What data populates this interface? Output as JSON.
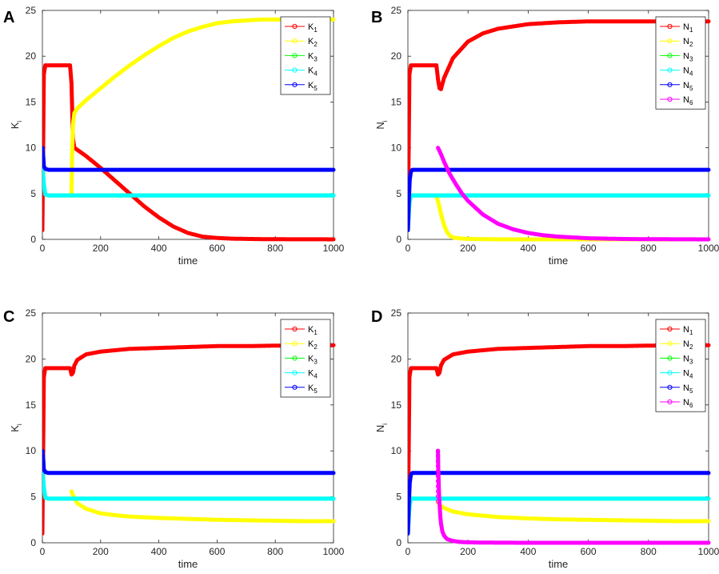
{
  "chart_data": [
    {
      "panel": "A",
      "type": "line",
      "xlabel": "time",
      "ylabel": "K",
      "ylabel_sub": "i",
      "xlim": [
        0,
        1000
      ],
      "ylim": [
        0,
        25
      ],
      "xticks": [
        "0",
        "200",
        "400",
        "600",
        "800",
        "1000"
      ],
      "yticks": [
        "0",
        "5",
        "10",
        "15",
        "20",
        "25"
      ],
      "legend_position": "top-right",
      "series": [
        {
          "name": "K",
          "sub": "1",
          "color": "#ff0000",
          "x": [
            0,
            5,
            10,
            15,
            20,
            40,
            60,
            80,
            95,
            100,
            105,
            110,
            150,
            200,
            250,
            300,
            350,
            400,
            450,
            500,
            550,
            600,
            650,
            700,
            750,
            800,
            850,
            900,
            950,
            1000
          ],
          "y": [
            1,
            18,
            19,
            19,
            19,
            19,
            19,
            19,
            19,
            17,
            11,
            10,
            9.1,
            7.8,
            6.4,
            5,
            3.6,
            2.4,
            1.4,
            0.7,
            0.3,
            0.15,
            0.08,
            0.05,
            0.03,
            0.02,
            0.01,
            0.01,
            0.01,
            0
          ]
        },
        {
          "name": "K",
          "sub": "2",
          "color": "#ffff00",
          "x": [
            100,
            102,
            105,
            110,
            120,
            150,
            200,
            250,
            300,
            350,
            400,
            450,
            500,
            550,
            600,
            650,
            700,
            750,
            800,
            850,
            900,
            950,
            1000
          ],
          "y": [
            5,
            9,
            12.5,
            13.8,
            14.3,
            15.2,
            16.5,
            17.8,
            19,
            20.1,
            21.1,
            22,
            22.7,
            23.2,
            23.6,
            23.8,
            23.9,
            24,
            24,
            24,
            24,
            24,
            24
          ]
        },
        {
          "name": "K",
          "sub": "3",
          "color": "#00ff00",
          "x": [
            0,
            5,
            10,
            20,
            50,
            100,
            200,
            400,
            600,
            800,
            1000
          ],
          "y": [
            8,
            6,
            4.9,
            4.8,
            4.8,
            4.8,
            4.8,
            4.8,
            4.8,
            4.8,
            4.8
          ]
        },
        {
          "name": "K",
          "sub": "4",
          "color": "#00ffff",
          "x": [
            0,
            5,
            10,
            20,
            50,
            100,
            200,
            400,
            600,
            800,
            1000
          ],
          "y": [
            8,
            6,
            4.9,
            4.8,
            4.8,
            4.8,
            4.8,
            4.8,
            4.8,
            4.8,
            4.8
          ]
        },
        {
          "name": "K",
          "sub": "5",
          "color": "#0000ff",
          "x": [
            0,
            2,
            5,
            10,
            20,
            50,
            100,
            200,
            400,
            600,
            800,
            1000
          ],
          "y": [
            10,
            9.5,
            8,
            7.7,
            7.6,
            7.6,
            7.6,
            7.6,
            7.6,
            7.6,
            7.6,
            7.6
          ]
        }
      ]
    },
    {
      "panel": "B",
      "type": "line",
      "xlabel": "time",
      "ylabel": "N",
      "ylabel_sub": "i",
      "xlim": [
        0,
        1000
      ],
      "ylim": [
        0,
        25
      ],
      "xticks": [
        "0",
        "200",
        "400",
        "600",
        "800",
        "1000"
      ],
      "yticks": [
        "0",
        "5",
        "10",
        "15",
        "20",
        "25"
      ],
      "legend_position": "top-right",
      "series": [
        {
          "name": "N",
          "sub": "1",
          "color": "#ff0000",
          "x": [
            0,
            5,
            10,
            15,
            20,
            40,
            60,
            80,
            95,
            100,
            105,
            110,
            120,
            150,
            200,
            250,
            300,
            400,
            500,
            600,
            700,
            800,
            900,
            1000
          ],
          "y": [
            1,
            18,
            19,
            19,
            19,
            19,
            19,
            19,
            19,
            17.5,
            16.5,
            16.4,
            17.6,
            19.8,
            21.6,
            22.5,
            23,
            23.5,
            23.7,
            23.8,
            23.8,
            23.8,
            23.8,
            23.8
          ]
        },
        {
          "name": "N",
          "sub": "2",
          "color": "#ffff00",
          "x": [
            95,
            100,
            110,
            120,
            130,
            140,
            150,
            175,
            200,
            300,
            400,
            600,
            800,
            1000
          ],
          "y": [
            4.7,
            4.2,
            2.8,
            1.6,
            0.8,
            0.4,
            0.2,
            0.1,
            0.05,
            0,
            0,
            0,
            0,
            0
          ]
        },
        {
          "name": "N",
          "sub": "3",
          "color": "#00ff00",
          "x": [
            0,
            5,
            10,
            20,
            50,
            100,
            200,
            400,
            600,
            800,
            1000
          ],
          "y": [
            1,
            4,
            4.8,
            4.8,
            4.8,
            4.8,
            4.8,
            4.8,
            4.8,
            4.8,
            4.8
          ]
        },
        {
          "name": "N",
          "sub": "4",
          "color": "#00ffff",
          "x": [
            0,
            5,
            10,
            20,
            50,
            100,
            200,
            400,
            600,
            800,
            1000
          ],
          "y": [
            1,
            4,
            4.8,
            4.8,
            4.8,
            4.8,
            4.8,
            4.8,
            4.8,
            4.8,
            4.8
          ]
        },
        {
          "name": "N",
          "sub": "5",
          "color": "#0000ff",
          "x": [
            0,
            3,
            6,
            10,
            15,
            20,
            50,
            100,
            200,
            400,
            600,
            800,
            1000
          ],
          "y": [
            1,
            4,
            6.5,
            7.4,
            7.6,
            7.6,
            7.6,
            7.6,
            7.6,
            7.6,
            7.6,
            7.6,
            7.6
          ]
        },
        {
          "name": "N",
          "sub": "6",
          "color": "#ff00ff",
          "x": [
            100,
            110,
            120,
            140,
            160,
            180,
            200,
            250,
            300,
            350,
            400,
            450,
            500,
            600,
            700,
            800,
            900,
            1000
          ],
          "y": [
            10,
            9.3,
            8.5,
            7.1,
            6,
            5,
            4.2,
            2.7,
            1.7,
            1.1,
            0.7,
            0.45,
            0.3,
            0.12,
            0.05,
            0.02,
            0.01,
            0
          ]
        }
      ]
    },
    {
      "panel": "C",
      "type": "line",
      "xlabel": "time",
      "ylabel": "K",
      "ylabel_sub": "i",
      "xlim": [
        0,
        1000
      ],
      "ylim": [
        0,
        25
      ],
      "xticks": [
        "0",
        "200",
        "400",
        "600",
        "800",
        "1000"
      ],
      "yticks": [
        "0",
        "5",
        "10",
        "15",
        "20",
        "25"
      ],
      "legend_position": "top-right",
      "series": [
        {
          "name": "K",
          "sub": "1",
          "color": "#ff0000",
          "x": [
            0,
            5,
            10,
            15,
            20,
            40,
            60,
            80,
            95,
            100,
            105,
            110,
            120,
            150,
            200,
            300,
            400,
            500,
            600,
            700,
            800,
            900,
            1000
          ],
          "y": [
            1,
            18,
            19,
            19,
            19,
            19,
            19,
            19,
            19,
            18.3,
            18.5,
            19.3,
            19.9,
            20.5,
            20.8,
            21.1,
            21.2,
            21.3,
            21.4,
            21.4,
            21.45,
            21.5,
            21.5
          ]
        },
        {
          "name": "K",
          "sub": "2",
          "color": "#ffff00",
          "x": [
            100,
            105,
            110,
            120,
            150,
            200,
            250,
            300,
            400,
            500,
            600,
            700,
            800,
            900,
            1000
          ],
          "y": [
            5.6,
            5.2,
            4.8,
            4.3,
            3.7,
            3.2,
            3,
            2.85,
            2.7,
            2.6,
            2.5,
            2.45,
            2.4,
            2.35,
            2.35
          ]
        },
        {
          "name": "K",
          "sub": "3",
          "color": "#00ff00",
          "x": [
            0,
            5,
            10,
            20,
            50,
            100,
            200,
            400,
            600,
            800,
            1000
          ],
          "y": [
            8,
            6,
            4.9,
            4.8,
            4.8,
            4.8,
            4.8,
            4.8,
            4.8,
            4.8,
            4.8
          ]
        },
        {
          "name": "K",
          "sub": "4",
          "color": "#00ffff",
          "x": [
            0,
            5,
            10,
            20,
            50,
            100,
            200,
            400,
            600,
            800,
            1000
          ],
          "y": [
            8,
            6,
            4.9,
            4.8,
            4.8,
            4.8,
            4.8,
            4.8,
            4.8,
            4.8,
            4.8
          ]
        },
        {
          "name": "K",
          "sub": "5",
          "color": "#0000ff",
          "x": [
            0,
            2,
            5,
            10,
            20,
            50,
            100,
            200,
            400,
            600,
            800,
            1000
          ],
          "y": [
            10,
            9.5,
            8,
            7.7,
            7.6,
            7.6,
            7.6,
            7.6,
            7.6,
            7.6,
            7.6,
            7.6
          ]
        }
      ]
    },
    {
      "panel": "D",
      "type": "line",
      "xlabel": "time",
      "ylabel": "N",
      "ylabel_sub": "i",
      "xlim": [
        0,
        1000
      ],
      "ylim": [
        0,
        25
      ],
      "xticks": [
        "0",
        "200",
        "400",
        "600",
        "800",
        "1000"
      ],
      "yticks": [
        "0",
        "5",
        "10",
        "15",
        "20",
        "25"
      ],
      "legend_position": "top-right",
      "series": [
        {
          "name": "N",
          "sub": "1",
          "color": "#ff0000",
          "x": [
            0,
            5,
            10,
            15,
            20,
            40,
            60,
            80,
            95,
            100,
            105,
            110,
            120,
            150,
            200,
            300,
            400,
            500,
            600,
            700,
            800,
            900,
            1000
          ],
          "y": [
            1,
            18,
            19,
            19,
            19,
            19,
            19,
            19,
            19,
            18.3,
            18.5,
            19.3,
            19.9,
            20.5,
            20.8,
            21.1,
            21.2,
            21.3,
            21.4,
            21.4,
            21.45,
            21.5,
            21.5
          ]
        },
        {
          "name": "N",
          "sub": "2",
          "color": "#ffff00",
          "x": [
            100,
            105,
            110,
            120,
            150,
            200,
            250,
            300,
            400,
            500,
            600,
            700,
            800,
            900,
            1000
          ],
          "y": [
            4.4,
            4.2,
            4,
            3.8,
            3.4,
            3.1,
            2.95,
            2.8,
            2.65,
            2.55,
            2.5,
            2.45,
            2.4,
            2.35,
            2.35
          ]
        },
        {
          "name": "N",
          "sub": "3",
          "color": "#00ff00",
          "x": [
            0,
            5,
            10,
            20,
            50,
            100,
            200,
            400,
            600,
            800,
            1000
          ],
          "y": [
            1,
            4,
            4.8,
            4.8,
            4.8,
            4.8,
            4.8,
            4.8,
            4.8,
            4.8,
            4.8
          ]
        },
        {
          "name": "N",
          "sub": "4",
          "color": "#00ffff",
          "x": [
            0,
            5,
            10,
            20,
            50,
            100,
            200,
            400,
            600,
            800,
            1000
          ],
          "y": [
            1,
            4,
            4.8,
            4.8,
            4.8,
            4.8,
            4.8,
            4.8,
            4.8,
            4.8,
            4.8
          ]
        },
        {
          "name": "N",
          "sub": "5",
          "color": "#0000ff",
          "x": [
            0,
            3,
            6,
            10,
            15,
            20,
            50,
            100,
            200,
            400,
            600,
            800,
            1000
          ],
          "y": [
            1,
            4,
            6.5,
            7.4,
            7.6,
            7.6,
            7.6,
            7.6,
            7.6,
            7.6,
            7.6,
            7.6,
            7.6
          ]
        },
        {
          "name": "N",
          "sub": "6",
          "color": "#ff00ff",
          "x": [
            100,
            100.5,
            101,
            102,
            103,
            104,
            106,
            108,
            110,
            115,
            120,
            130,
            150,
            170,
            200,
            250,
            300,
            400,
            600,
            800,
            1000
          ],
          "y": [
            10,
            9,
            8,
            7,
            6,
            5,
            3.8,
            2.8,
            2.1,
            1.2,
            0.8,
            0.4,
            0.2,
            0.1,
            0.05,
            0.02,
            0.01,
            0,
            0,
            0,
            0
          ]
        }
      ]
    }
  ]
}
